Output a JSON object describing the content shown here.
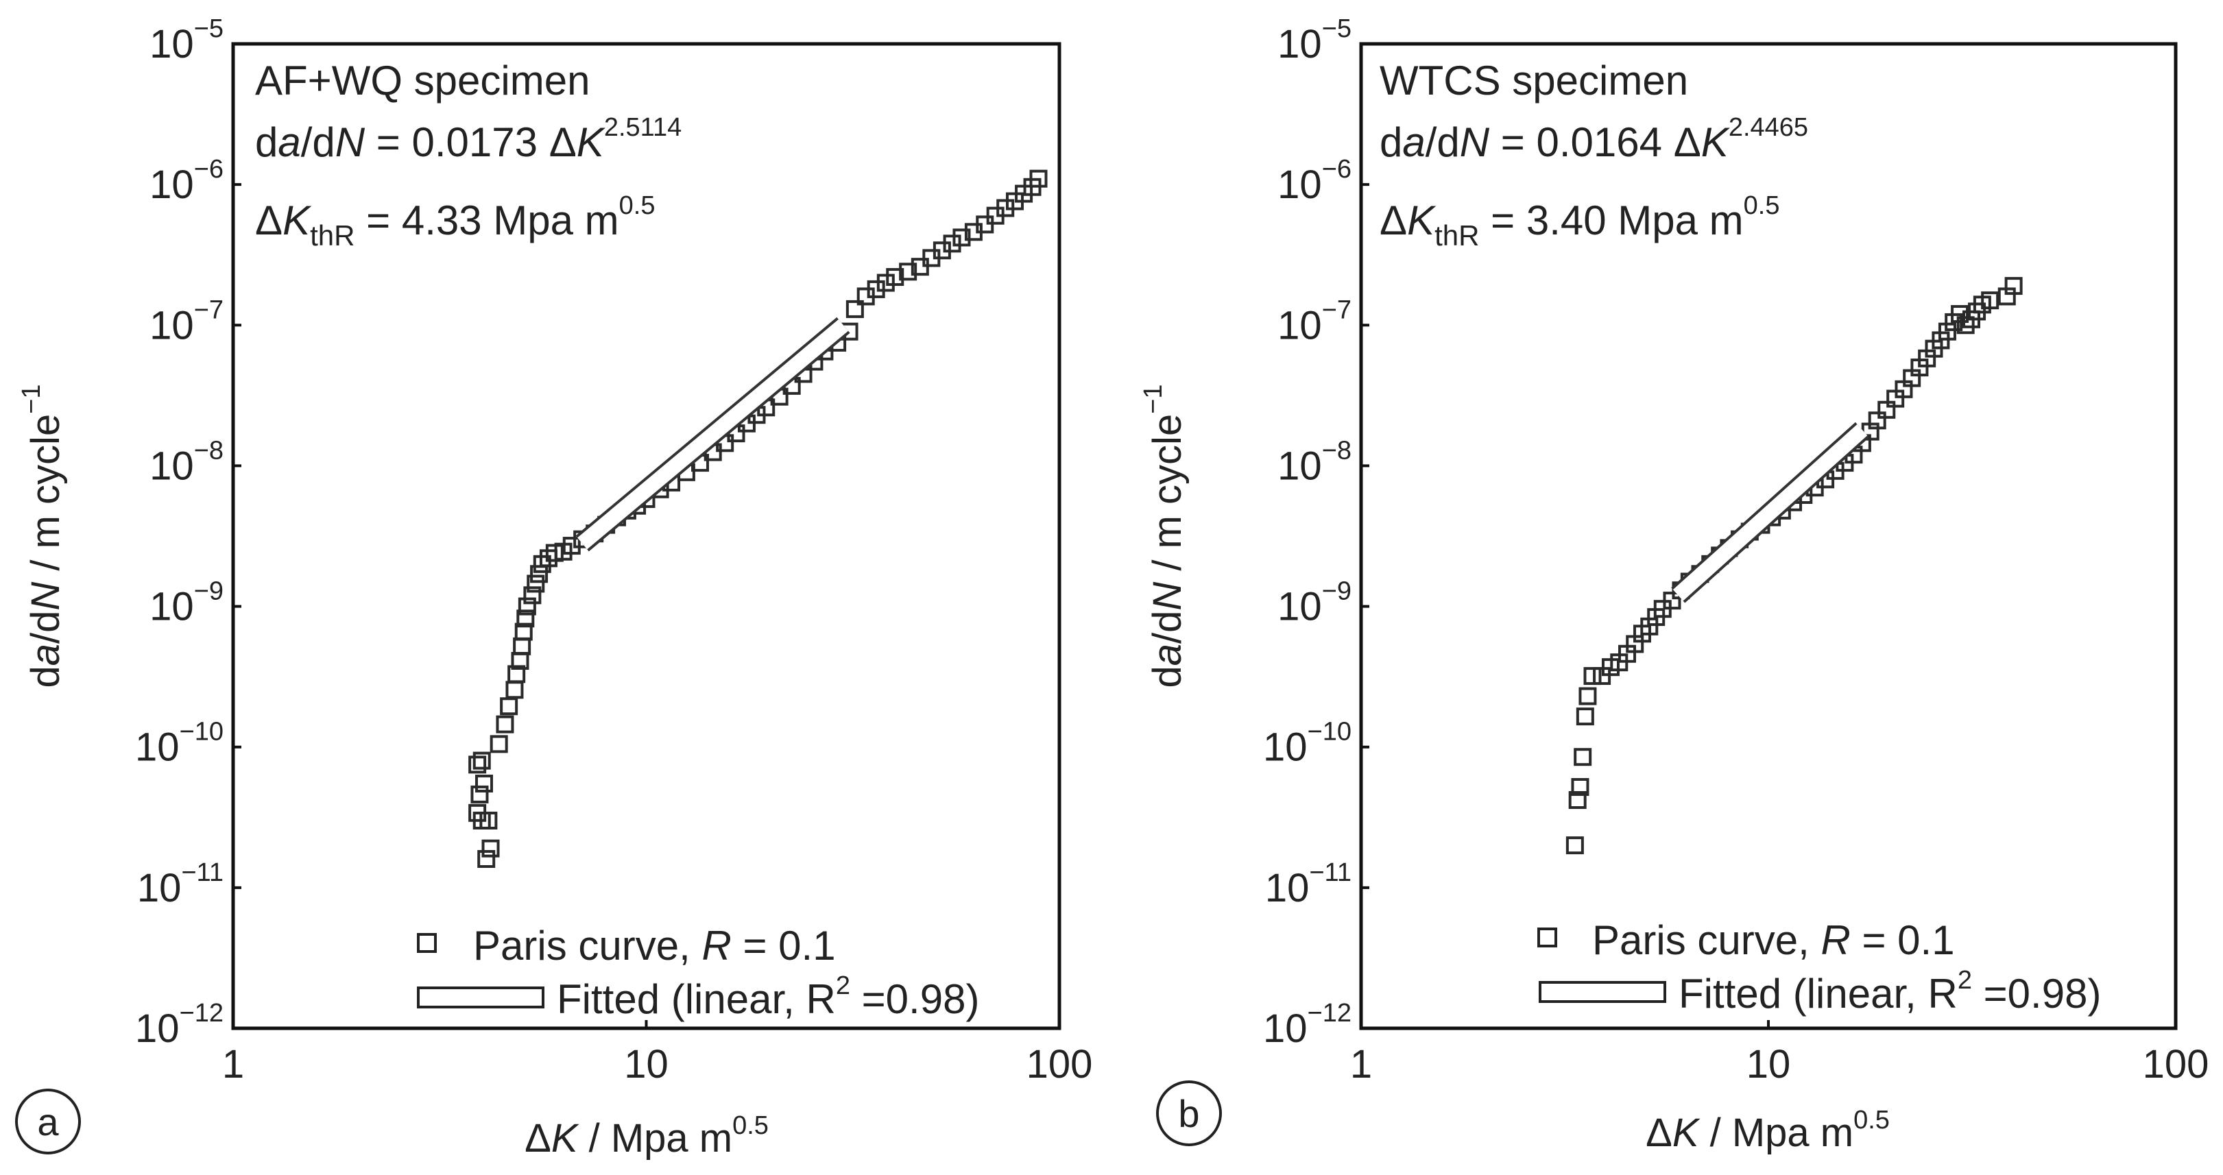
{
  "chart_data": [
    {
      "type": "scatter",
      "panel": "a",
      "xscale": "log",
      "yscale": "log",
      "xlim": [
        1,
        100
      ],
      "ylim": [
        1e-12,
        1e-05
      ],
      "xticks": [
        "1",
        "10",
        "100"
      ],
      "yticks": [
        {
          "base": "10",
          "exp": "−12"
        },
        {
          "base": "10",
          "exp": "−11"
        },
        {
          "base": "10",
          "exp": "−10"
        },
        {
          "base": "10",
          "exp": "−9"
        },
        {
          "base": "10",
          "exp": "−8"
        },
        {
          "base": "10",
          "exp": "−7"
        },
        {
          "base": "10",
          "exp": "−6"
        },
        {
          "base": "10",
          "exp": "−5"
        }
      ],
      "xlabel": {
        "delta": "Δ",
        "var": "K",
        "unit": " / Mpa m",
        "exp": "0.5"
      },
      "ylabel": {
        "d1": "d",
        "a": "a",
        "mid": "/d",
        "N": "N",
        "unit": " / m cycle",
        "exp": "−1"
      },
      "annotation": {
        "title": "AF+WQ specimen",
        "eq": {
          "d": "d",
          "a": "a",
          "slash": "/d",
          "N": "N",
          "rest": " = 0.0173 Δ",
          "K": "K",
          "exp": "2.5114"
        },
        "thresh": {
          "delta": "Δ",
          "K": "K",
          "sub": "thR",
          "rest": " = 4.33 Mpa m",
          "exp": "0.5"
        }
      },
      "legend": {
        "paris": {
          "label": "Paris curve, ",
          "R": "R",
          "val": " = 0.1"
        },
        "fitted": {
          "label": "Fitted (linear, R",
          "exp": "2",
          "rest": " =0.98)"
        }
      },
      "fit": {
        "dk": [
          7.0,
          30.0
        ],
        "dadn": [
          2.8e-09,
          1e-07
        ]
      },
      "series": [
        {
          "name": "Paris curve, R = 0.1",
          "points": [
            [
              4.1,
              1.6e-11
            ],
            [
              4.2,
              1.9e-11
            ],
            [
              4.0,
              3e-11
            ],
            [
              3.9,
              3.4e-11
            ],
            [
              4.15,
              3e-11
            ],
            [
              3.95,
              4.6e-11
            ],
            [
              4.05,
              5.5e-11
            ],
            [
              3.9,
              7.5e-11
            ],
            [
              4.0,
              8e-11
            ],
            [
              4.4,
              1.05e-10
            ],
            [
              4.55,
              1.45e-10
            ],
            [
              4.65,
              1.95e-10
            ],
            [
              4.8,
              2.55e-10
            ],
            [
              4.85,
              3.3e-10
            ],
            [
              4.95,
              4.1e-10
            ],
            [
              5.0,
              5.2e-10
            ],
            [
              5.05,
              6.6e-10
            ],
            [
              5.1,
              8.2e-10
            ],
            [
              5.15,
              1e-09
            ],
            [
              5.3,
              1.2e-09
            ],
            [
              5.4,
              1.45e-09
            ],
            [
              5.5,
              1.7e-09
            ],
            [
              5.6,
              2e-09
            ],
            [
              5.8,
              2.2e-09
            ],
            [
              6.0,
              2.4e-09
            ],
            [
              6.3,
              2.45e-09
            ],
            [
              6.6,
              2.7e-09
            ],
            [
              7.0,
              3e-09
            ],
            [
              7.5,
              3.3e-09
            ],
            [
              8.0,
              3.8e-09
            ],
            [
              8.5,
              4.3e-09
            ],
            [
              9.0,
              4.8e-09
            ],
            [
              9.5,
              5.2e-09
            ],
            [
              10.0,
              5.8e-09
            ],
            [
              10.8,
              6.8e-09
            ],
            [
              11.5,
              7.6e-09
            ],
            [
              12.5,
              9e-09
            ],
            [
              13.5,
              1.05e-08
            ],
            [
              14.5,
              1.25e-08
            ],
            [
              15.5,
              1.45e-08
            ],
            [
              16.5,
              1.7e-08
            ],
            [
              17.5,
              2e-08
            ],
            [
              18.5,
              2.3e-08
            ],
            [
              19.5,
              2.6e-08
            ],
            [
              21.0,
              3.1e-08
            ],
            [
              22.5,
              3.7e-08
            ],
            [
              24.0,
              4.5e-08
            ],
            [
              25.5,
              5.5e-08
            ],
            [
              27.0,
              6.5e-08
            ],
            [
              29.0,
              7.5e-08
            ],
            [
              31.0,
              9e-08
            ],
            [
              32.0,
              1.3e-07
            ],
            [
              34.0,
              1.6e-07
            ],
            [
              36.0,
              1.8e-07
            ],
            [
              38.0,
              2e-07
            ],
            [
              40.0,
              2.2e-07
            ],
            [
              43.0,
              2.4e-07
            ],
            [
              46.0,
              2.6e-07
            ],
            [
              49.0,
              3e-07
            ],
            [
              52.0,
              3.4e-07
            ],
            [
              55.0,
              3.8e-07
            ],
            [
              58.0,
              4.2e-07
            ],
            [
              62.0,
              4.6e-07
            ],
            [
              66.0,
              5.2e-07
            ],
            [
              70.0,
              6e-07
            ],
            [
              74.0,
              6.8e-07
            ],
            [
              78.0,
              7.6e-07
            ],
            [
              82.0,
              8.6e-07
            ],
            [
              86.0,
              9.6e-07
            ],
            [
              89.0,
              1.1e-06
            ]
          ]
        }
      ]
    },
    {
      "type": "scatter",
      "panel": "b",
      "xscale": "log",
      "yscale": "log",
      "xlim": [
        1,
        100
      ],
      "ylim": [
        1e-12,
        1e-05
      ],
      "xticks": [
        "1",
        "10",
        "100"
      ],
      "yticks": [
        {
          "base": "10",
          "exp": "−12"
        },
        {
          "base": "10",
          "exp": "−11"
        },
        {
          "base": "10",
          "exp": "−10"
        },
        {
          "base": "10",
          "exp": "−9"
        },
        {
          "base": "10",
          "exp": "−8"
        },
        {
          "base": "10",
          "exp": "−7"
        },
        {
          "base": "10",
          "exp": "−6"
        },
        {
          "base": "10",
          "exp": "−5"
        }
      ],
      "xlabel": {
        "delta": "Δ",
        "var": "K",
        "unit": " / Mpa m",
        "exp": "0.5"
      },
      "ylabel": {
        "d1": "d",
        "a": "a",
        "mid": "/d",
        "N": "N",
        "unit": " / m cycle",
        "exp": "−1"
      },
      "annotation": {
        "title": "WTCS specimen",
        "eq": {
          "d": "d",
          "a": "a",
          "slash": "/d",
          "N": "N",
          "rest": " = 0.0164 Δ",
          "K": "K",
          "exp": "2.4465"
        },
        "thresh": {
          "delta": "Δ",
          "K": "K",
          "sub": "thR",
          "rest": " = 3.40 Mpa m",
          "exp": "0.5"
        }
      },
      "legend": {
        "paris": {
          "label": "Paris curve, ",
          "R": "R",
          "val": " = 0.1"
        },
        "fitted": {
          "label": "Fitted (linear, R",
          "exp": "2",
          "rest": " =0.98)"
        }
      },
      "fit": {
        "dk": [
          6.0,
          17.0
        ],
        "dadn": [
          1.2e-09,
          1.8e-08
        ]
      },
      "series": [
        {
          "name": "Paris curve, R = 0.1",
          "points": [
            [
              3.35,
              2e-11
            ],
            [
              3.4,
              4.2e-11
            ],
            [
              3.45,
              5.2e-11
            ],
            [
              3.5,
              8.5e-11
            ],
            [
              3.55,
              1.65e-10
            ],
            [
              3.6,
              2.3e-10
            ],
            [
              3.7,
              3.2e-10
            ],
            [
              3.9,
              3.2e-10
            ],
            [
              4.1,
              3.7e-10
            ],
            [
              4.3,
              4e-10
            ],
            [
              4.5,
              4.6e-10
            ],
            [
              4.7,
              5.4e-10
            ],
            [
              4.9,
              6.4e-10
            ],
            [
              5.1,
              7.2e-10
            ],
            [
              5.3,
              8.4e-10
            ],
            [
              5.5,
              9.6e-10
            ],
            [
              5.8,
              1.1e-09
            ],
            [
              6.1,
              1.3e-09
            ],
            [
              6.4,
              1.5e-09
            ],
            [
              6.8,
              1.7e-09
            ],
            [
              7.2,
              2e-09
            ],
            [
              7.6,
              2.3e-09
            ],
            [
              8.0,
              2.6e-09
            ],
            [
              8.5,
              3e-09
            ],
            [
              9.0,
              3.4e-09
            ],
            [
              9.6,
              3.8e-09
            ],
            [
              10.2,
              4.3e-09
            ],
            [
              10.8,
              4.8e-09
            ],
            [
              11.5,
              5.5e-09
            ],
            [
              12.2,
              6.2e-09
            ],
            [
              13.0,
              7e-09
            ],
            [
              13.8,
              8e-09
            ],
            [
              14.6,
              9.2e-09
            ],
            [
              15.4,
              1.05e-08
            ],
            [
              16.2,
              1.2e-08
            ],
            [
              17.0,
              1.45e-08
            ],
            [
              17.8,
              1.75e-08
            ],
            [
              18.5,
              2.1e-08
            ],
            [
              19.5,
              2.5e-08
            ],
            [
              20.5,
              3e-08
            ],
            [
              21.5,
              3.5e-08
            ],
            [
              22.5,
              4.2e-08
            ],
            [
              23.5,
              5e-08
            ],
            [
              24.5,
              5.8e-08
            ],
            [
              25.5,
              6.8e-08
            ],
            [
              26.5,
              7.8e-08
            ],
            [
              27.5,
              9e-08
            ],
            [
              28.5,
              1.05e-07
            ],
            [
              29.5,
              1.2e-07
            ],
            [
              30.5,
              1e-07
            ],
            [
              31.5,
              1.1e-07
            ],
            [
              32.5,
              1.25e-07
            ],
            [
              33.5,
              1.4e-07
            ],
            [
              35.0,
              1.5e-07
            ],
            [
              38.5,
              1.6e-07
            ],
            [
              40.0,
              1.9e-07
            ]
          ]
        }
      ]
    }
  ]
}
